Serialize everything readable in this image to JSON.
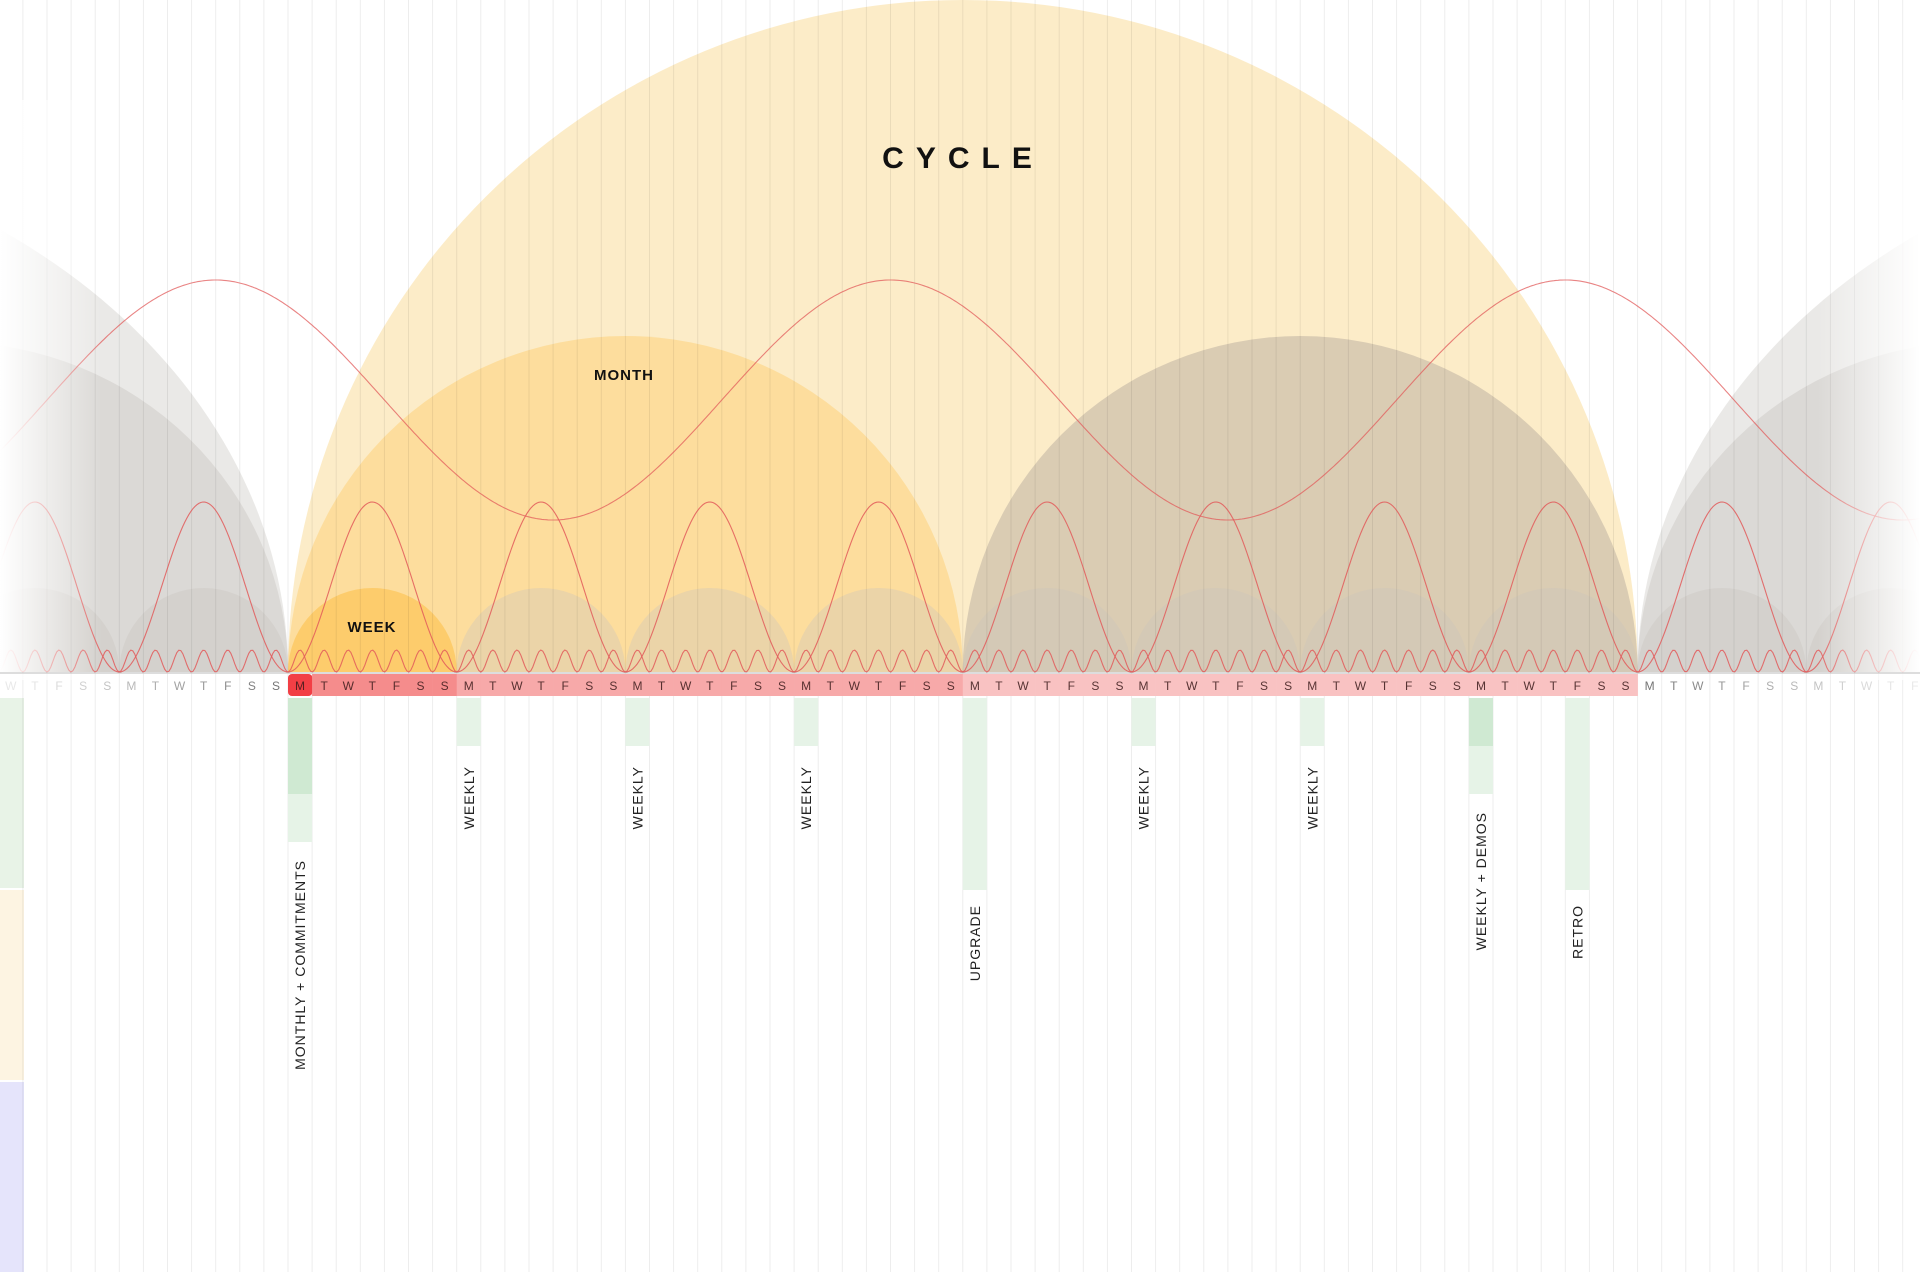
{
  "title": "CYCLE",
  "month_label": "MONTH",
  "week_label": "WEEK",
  "day_letters": [
    "M",
    "T",
    "W",
    "T",
    "F",
    "S",
    "S"
  ],
  "colors": {
    "cycle": "#fbe2ab",
    "month": "#fdd78a",
    "week": "#fcc860",
    "gray_cycle": "#cfc2ac",
    "gray_dome": "#c9c4bc",
    "curve": "#e25b5b",
    "day_strip": "#f58c8c",
    "day_strip_light": "#f9c2c2",
    "today": "#f23f45",
    "event_green": "#cfe9d2",
    "event_green_light": "#e6f3e7",
    "side_green": "#e8f3e7",
    "side_yellow": "#fdf4e2",
    "side_purple": "#e5e4fb"
  },
  "events": [
    {
      "label": "MONTHLY + COMMITMENTS",
      "day": 0
    },
    {
      "label": "WEEKLY",
      "day": 7
    },
    {
      "label": "WEEKLY",
      "day": 14
    },
    {
      "label": "WEEKLY",
      "day": 21
    },
    {
      "label": "UPGRADE",
      "day": 28
    },
    {
      "label": "WEEKLY",
      "day": 35
    },
    {
      "label": "WEEKLY",
      "day": 42
    },
    {
      "label": "WEEKLY + DEMOS",
      "day": 49
    },
    {
      "label": "RETRO",
      "day": 53
    }
  ]
}
